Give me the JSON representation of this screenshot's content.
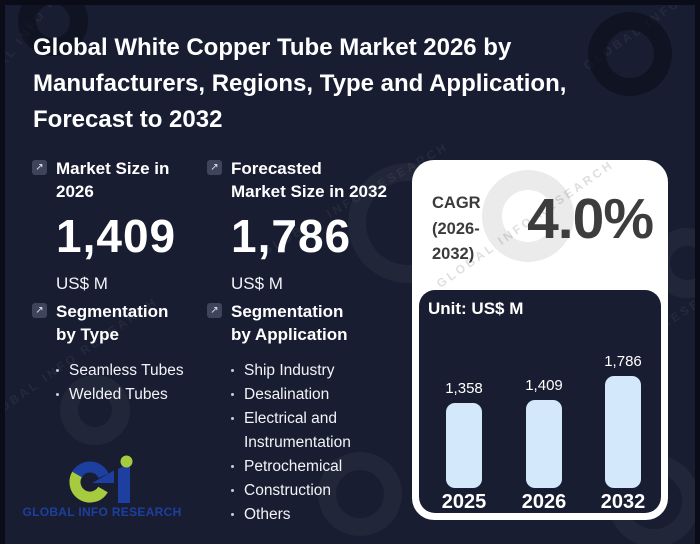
{
  "colors": {
    "background": "#191d31",
    "card": "#ffffff",
    "bar_fill": "#d3e8fb",
    "icon_box": "#3d445c",
    "dark_text": "#3d3d3d",
    "logo_blue": "#1c3fa0",
    "logo_green": "#a6cb3f"
  },
  "title_lines": [
    "Global White Copper Tube Market 2026 by",
    "Manufacturers, Regions, Type and Application,",
    "Forecast to 2032"
  ],
  "stats": [
    {
      "icon": "arrow-up-right-icon",
      "arrow_glyph": "↗",
      "label_lines": [
        "Market Size in",
        "2026"
      ],
      "value": "1,409",
      "unit": "US$ M"
    },
    {
      "icon": "arrow-up-right-icon",
      "arrow_glyph": "↗",
      "label_lines": [
        "Forecasted",
        "Market Size in 2032"
      ],
      "value": "1,786",
      "unit": "US$ M"
    }
  ],
  "segmentation_by_type": {
    "icon": "arrow-up-right-icon",
    "arrow_glyph": "↗",
    "heading_lines": [
      "Segmentation",
      "by Type"
    ],
    "items": [
      "Seamless Tubes",
      "Welded Tubes"
    ]
  },
  "segmentation_by_application": {
    "icon": "arrow-up-right-icon",
    "arrow_glyph": "↗",
    "heading_lines": [
      "Segmentation",
      "by Application"
    ],
    "items": [
      "Ship Industry",
      "Desalination",
      "Electrical and Instrumentation",
      "Petrochemical",
      "Construction",
      "Others"
    ]
  },
  "cagr": {
    "label_lines": [
      "CAGR",
      "(2026-",
      "2032)"
    ],
    "value": "4.0%"
  },
  "chart_data": {
    "type": "bar",
    "title": "Unit: US$ M",
    "categories": [
      "2025",
      "2026",
      "2032"
    ],
    "values": [
      1358,
      1409,
      1786
    ],
    "value_labels": [
      "1,358",
      "1,409",
      "1,786"
    ],
    "xlabel": "",
    "ylabel": "US$ M",
    "ylim": [
      0,
      2000
    ],
    "grid": false,
    "legend": false,
    "bar_color": "#d3e8fb"
  },
  "logo": {
    "glyph": "Gi",
    "text": "GLOBAL INFO RESEARCH"
  },
  "watermark_text": "GLOBAL INFO RESEARCH"
}
